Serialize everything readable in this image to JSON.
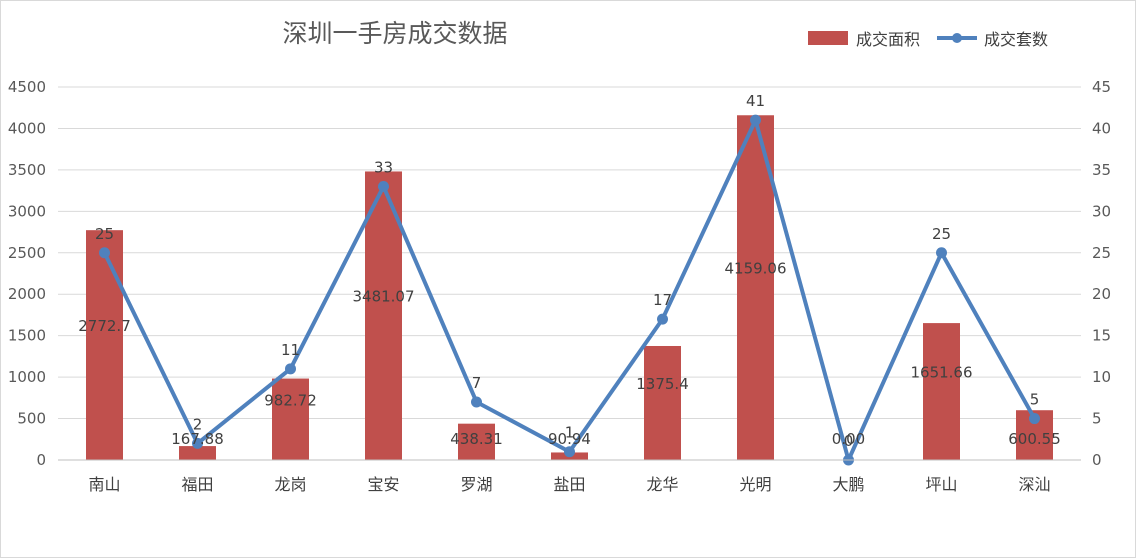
{
  "chart_data": {
    "type": "bar",
    "title": "深圳一手房成交数据",
    "categories": [
      "南山",
      "福田",
      "龙岗",
      "宝安",
      "罗湖",
      "盐田",
      "龙华",
      "光明",
      "大鹏",
      "坪山",
      "深汕"
    ],
    "series": [
      {
        "name": "成交面积",
        "type": "bar",
        "axis": "left",
        "color": "#c0504d",
        "values": [
          2772.7,
          167.88,
          982.72,
          3481.07,
          438.31,
          90.94,
          1375.4,
          4159.06,
          0.0,
          1651.66,
          600.55
        ],
        "labels": [
          "2772.7",
          "167.88",
          "982.72",
          "3481.07",
          "438.31",
          "90.94",
          "1375.4",
          "4159.06",
          "0.00",
          "1651.66",
          "600.55"
        ]
      },
      {
        "name": "成交套数",
        "type": "line",
        "axis": "right",
        "color": "#4f81bd",
        "values": [
          25,
          2,
          11,
          33,
          7,
          1,
          17,
          41,
          0,
          25,
          5
        ],
        "labels": [
          "25",
          "2",
          "11",
          "33",
          "7",
          "1",
          "17",
          "41",
          "0",
          "25",
          "5"
        ]
      }
    ],
    "ylim_left": [
      0,
      4500
    ],
    "yticks_left": [
      "0",
      "500",
      "1000",
      "1500",
      "2000",
      "2500",
      "3000",
      "3500",
      "4000",
      "4500"
    ],
    "ylim_right": [
      0,
      45
    ],
    "yticks_right": [
      "0",
      "5",
      "10",
      "15",
      "20",
      "25",
      "30",
      "35",
      "40",
      "45"
    ],
    "grid": true,
    "legend_position": "top-right"
  }
}
